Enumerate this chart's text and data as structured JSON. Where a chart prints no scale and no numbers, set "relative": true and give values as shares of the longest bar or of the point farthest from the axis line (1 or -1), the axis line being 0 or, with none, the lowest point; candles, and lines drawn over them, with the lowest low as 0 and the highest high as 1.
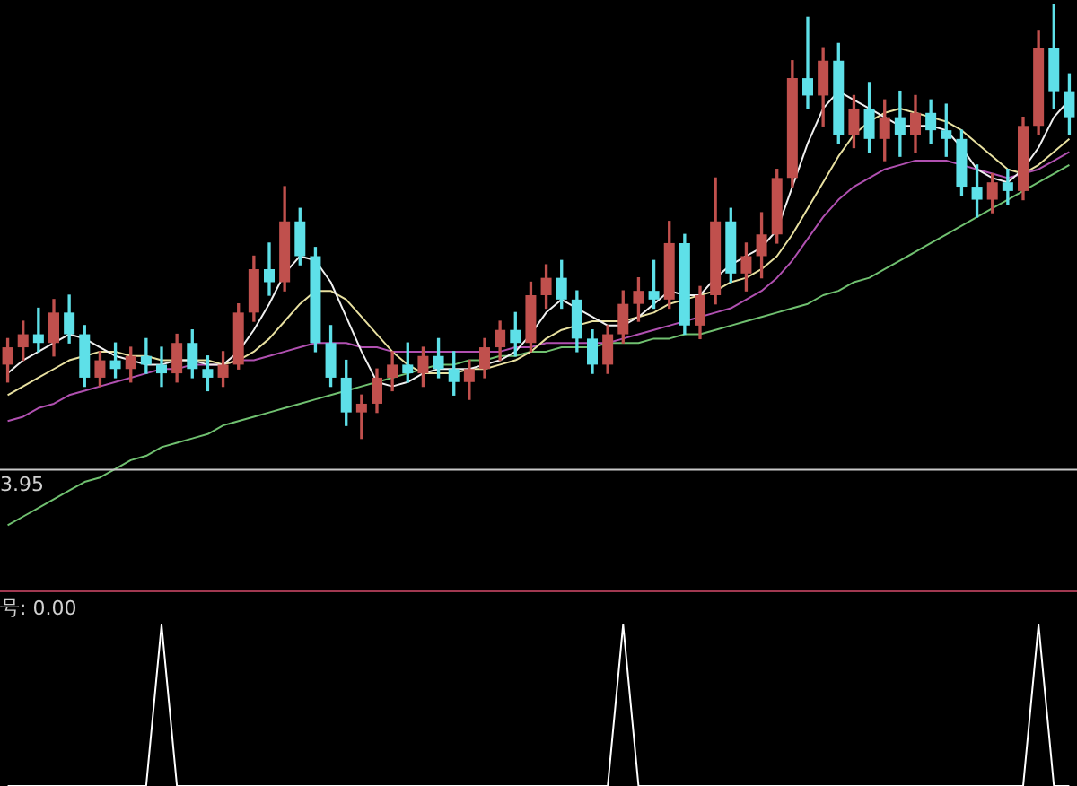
{
  "chart_data": [
    {
      "type": "candlestick",
      "relative": true,
      "categories": [
        null,
        null,
        null,
        null,
        null,
        null,
        null,
        null,
        null,
        null,
        null,
        null,
        null,
        null,
        null,
        null,
        null,
        null,
        null,
        null,
        null,
        null,
        null,
        null,
        null,
        null,
        null,
        null,
        null,
        null,
        null,
        null,
        null,
        null,
        null,
        null,
        null,
        null,
        null,
        null,
        null,
        null,
        null,
        null,
        null,
        null,
        null,
        null,
        null,
        null,
        null,
        null,
        null,
        null,
        null,
        null,
        null,
        null,
        null,
        null,
        null,
        null,
        null,
        null,
        null,
        null,
        null,
        null,
        null,
        null
      ],
      "ohlc": [
        [
          0.17,
          0.23,
          0.13,
          0.21
        ],
        [
          0.21,
          0.27,
          0.18,
          0.24
        ],
        [
          0.24,
          0.3,
          0.2,
          0.22
        ],
        [
          0.22,
          0.32,
          0.19,
          0.29
        ],
        [
          0.29,
          0.33,
          0.22,
          0.24
        ],
        [
          0.24,
          0.26,
          0.12,
          0.14
        ],
        [
          0.14,
          0.2,
          0.12,
          0.18
        ],
        [
          0.18,
          0.22,
          0.14,
          0.16
        ],
        [
          0.16,
          0.21,
          0.13,
          0.19
        ],
        [
          0.19,
          0.23,
          0.15,
          0.17
        ],
        [
          0.17,
          0.21,
          0.12,
          0.15
        ],
        [
          0.15,
          0.24,
          0.13,
          0.22
        ],
        [
          0.22,
          0.25,
          0.14,
          0.16
        ],
        [
          0.16,
          0.19,
          0.11,
          0.14
        ],
        [
          0.14,
          0.2,
          0.12,
          0.17
        ],
        [
          0.17,
          0.31,
          0.16,
          0.29
        ],
        [
          0.29,
          0.42,
          0.27,
          0.39
        ],
        [
          0.39,
          0.45,
          0.33,
          0.36
        ],
        [
          0.36,
          0.58,
          0.34,
          0.5
        ],
        [
          0.5,
          0.53,
          0.4,
          0.42
        ],
        [
          0.42,
          0.44,
          0.2,
          0.22
        ],
        [
          0.22,
          0.26,
          0.12,
          0.14
        ],
        [
          0.14,
          0.18,
          0.03,
          0.06
        ],
        [
          0.06,
          0.1,
          0,
          0.08
        ],
        [
          0.08,
          0.16,
          0.06,
          0.14
        ],
        [
          0.14,
          0.2,
          0.11,
          0.17
        ],
        [
          0.17,
          0.22,
          0.13,
          0.15
        ],
        [
          0.15,
          0.21,
          0.12,
          0.19
        ],
        [
          0.19,
          0.23,
          0.14,
          0.16
        ],
        [
          0.16,
          0.2,
          0.1,
          0.13
        ],
        [
          0.13,
          0.18,
          0.09,
          0.16
        ],
        [
          0.16,
          0.23,
          0.14,
          0.21
        ],
        [
          0.21,
          0.27,
          0.18,
          0.25
        ],
        [
          0.25,
          0.29,
          0.19,
          0.22
        ],
        [
          0.22,
          0.36,
          0.2,
          0.33
        ],
        [
          0.33,
          0.4,
          0.3,
          0.37
        ],
        [
          0.37,
          0.41,
          0.3,
          0.32
        ],
        [
          0.32,
          0.34,
          0.2,
          0.23
        ],
        [
          0.23,
          0.25,
          0.15,
          0.17
        ],
        [
          0.17,
          0.26,
          0.15,
          0.24
        ],
        [
          0.24,
          0.34,
          0.22,
          0.31
        ],
        [
          0.31,
          0.37,
          0.27,
          0.34
        ],
        [
          0.34,
          0.41,
          0.3,
          0.32
        ],
        [
          0.32,
          0.5,
          0.3,
          0.45
        ],
        [
          0.45,
          0.47,
          0.24,
          0.26
        ],
        [
          0.26,
          0.35,
          0.23,
          0.33
        ],
        [
          0.33,
          0.6,
          0.31,
          0.5
        ],
        [
          0.5,
          0.53,
          0.36,
          0.38
        ],
        [
          0.38,
          0.45,
          0.34,
          0.42
        ],
        [
          0.42,
          0.52,
          0.37,
          0.47
        ],
        [
          0.47,
          0.62,
          0.45,
          0.6
        ],
        [
          0.6,
          0.87,
          0.58,
          0.83
        ],
        [
          0.83,
          0.97,
          0.76,
          0.79
        ],
        [
          0.79,
          0.9,
          0.72,
          0.87
        ],
        [
          0.87,
          0.91,
          0.68,
          0.7
        ],
        [
          0.7,
          0.79,
          0.67,
          0.76
        ],
        [
          0.76,
          0.82,
          0.66,
          0.69
        ],
        [
          0.69,
          0.78,
          0.64,
          0.74
        ],
        [
          0.74,
          0.8,
          0.65,
          0.7
        ],
        [
          0.7,
          0.79,
          0.66,
          0.75
        ],
        [
          0.75,
          0.78,
          0.68,
          0.71
        ],
        [
          0.71,
          0.77,
          0.65,
          0.69
        ],
        [
          0.69,
          0.71,
          0.56,
          0.58
        ],
        [
          0.58,
          0.63,
          0.51,
          0.55
        ],
        [
          0.55,
          0.61,
          0.52,
          0.59
        ],
        [
          0.59,
          0.62,
          0.54,
          0.57
        ],
        [
          0.57,
          0.74,
          0.55,
          0.72
        ],
        [
          0.72,
          0.94,
          0.7,
          0.9
        ],
        [
          0.9,
          1,
          0.76,
          0.8
        ],
        [
          0.8,
          0.84,
          0.7,
          0.74
        ]
      ],
      "colors": [
        "#c0504d",
        "#c0504d",
        "#5ee0e8",
        "#c0504d",
        "#5ee0e8",
        "#5ee0e8",
        "#c0504d",
        "#5ee0e8",
        "#c0504d",
        "#5ee0e8",
        "#5ee0e8",
        "#c0504d",
        "#5ee0e8",
        "#5ee0e8",
        "#c0504d",
        "#c0504d",
        "#c0504d",
        "#5ee0e8",
        "#c0504d",
        "#5ee0e8",
        "#5ee0e8",
        "#5ee0e8",
        "#5ee0e8",
        "#c0504d",
        "#c0504d",
        "#c0504d",
        "#5ee0e8",
        "#c0504d",
        "#5ee0e8",
        "#5ee0e8",
        "#c0504d",
        "#c0504d",
        "#c0504d",
        "#5ee0e8",
        "#c0504d",
        "#c0504d",
        "#5ee0e8",
        "#5ee0e8",
        "#5ee0e8",
        "#c0504d",
        "#c0504d",
        "#c0504d",
        "#5ee0e8",
        "#c0504d",
        "#5ee0e8",
        "#c0504d",
        "#c0504d",
        "#5ee0e8",
        "#c0504d",
        "#c0504d",
        "#c0504d",
        "#c0504d",
        "#5ee0e8",
        "#c0504d",
        "#5ee0e8",
        "#c0504d",
        "#5ee0e8",
        "#c0504d",
        "#5ee0e8",
        "#c0504d",
        "#5ee0e8",
        "#5ee0e8",
        "#5ee0e8",
        "#5ee0e8",
        "#c0504d",
        "#5ee0e8",
        "#c0504d",
        "#c0504d",
        "#5ee0e8",
        "#5ee0e8"
      ],
      "series": [
        {
          "type": "line",
          "color": "#f0f0f0",
          "values": [
            0.15,
            0.18,
            0.2,
            0.22,
            0.24,
            0.23,
            0.21,
            0.19,
            0.18,
            0.17,
            0.17,
            0.18,
            0.18,
            0.17,
            0.17,
            0.2,
            0.25,
            0.31,
            0.38,
            0.42,
            0.41,
            0.36,
            0.28,
            0.2,
            0.13,
            0.12,
            0.13,
            0.15,
            0.16,
            0.16,
            0.16,
            0.17,
            0.18,
            0.2,
            0.24,
            0.29,
            0.32,
            0.3,
            0.28,
            0.26,
            0.26,
            0.28,
            0.31,
            0.34,
            0.33,
            0.33,
            0.37,
            0.4,
            0.42,
            0.44,
            0.48,
            0.58,
            0.68,
            0.76,
            0.8,
            0.78,
            0.76,
            0.74,
            0.72,
            0.72,
            0.72,
            0.71,
            0.67,
            0.62,
            0.6,
            0.59,
            0.62,
            0.67,
            0.74,
            0.78
          ]
        },
        {
          "type": "line",
          "color": "#e8e0a0",
          "values": [
            0.1,
            0.12,
            0.14,
            0.16,
            0.18,
            0.19,
            0.2,
            0.2,
            0.19,
            0.19,
            0.18,
            0.18,
            0.18,
            0.18,
            0.17,
            0.18,
            0.2,
            0.23,
            0.27,
            0.31,
            0.34,
            0.34,
            0.32,
            0.28,
            0.24,
            0.2,
            0.17,
            0.15,
            0.15,
            0.15,
            0.16,
            0.16,
            0.17,
            0.18,
            0.2,
            0.23,
            0.25,
            0.26,
            0.27,
            0.27,
            0.27,
            0.28,
            0.29,
            0.31,
            0.32,
            0.33,
            0.34,
            0.36,
            0.37,
            0.39,
            0.42,
            0.47,
            0.53,
            0.59,
            0.65,
            0.7,
            0.73,
            0.75,
            0.76,
            0.75,
            0.74,
            0.73,
            0.71,
            0.68,
            0.65,
            0.62,
            0.61,
            0.63,
            0.66,
            0.69
          ]
        },
        {
          "type": "line",
          "color": "#b050b0",
          "values": [
            0.04,
            0.05,
            0.07,
            0.08,
            0.1,
            0.11,
            0.12,
            0.13,
            0.14,
            0.15,
            0.16,
            0.16,
            0.17,
            0.17,
            0.17,
            0.18,
            0.18,
            0.19,
            0.2,
            0.21,
            0.22,
            0.22,
            0.22,
            0.21,
            0.21,
            0.2,
            0.2,
            0.2,
            0.2,
            0.2,
            0.2,
            0.2,
            0.2,
            0.21,
            0.21,
            0.22,
            0.22,
            0.22,
            0.22,
            0.22,
            0.23,
            0.24,
            0.25,
            0.26,
            0.27,
            0.28,
            0.29,
            0.3,
            0.32,
            0.34,
            0.37,
            0.41,
            0.46,
            0.51,
            0.55,
            0.58,
            0.6,
            0.62,
            0.63,
            0.64,
            0.64,
            0.64,
            0.63,
            0.62,
            0.61,
            0.6,
            0.61,
            0.62,
            0.64,
            0.66
          ]
        },
        {
          "type": "line",
          "color": "#70c070",
          "values": [
            -0.2,
            -0.18,
            -0.16,
            -0.14,
            -0.12,
            -0.1,
            -0.09,
            -0.07,
            -0.05,
            -0.04,
            -0.02,
            -0.01,
            0,
            0.01,
            0.03,
            0.04,
            0.05,
            0.06,
            0.07,
            0.08,
            0.09,
            0.1,
            0.11,
            0.12,
            0.13,
            0.14,
            0.15,
            0.16,
            0.17,
            0.17,
            0.18,
            0.18,
            0.19,
            0.19,
            0.2,
            0.2,
            0.21,
            0.21,
            0.21,
            0.22,
            0.22,
            0.22,
            0.23,
            0.23,
            0.24,
            0.24,
            0.25,
            0.26,
            0.27,
            0.28,
            0.29,
            0.3,
            0.31,
            0.33,
            0.34,
            0.36,
            0.37,
            0.39,
            0.41,
            0.43,
            0.45,
            0.47,
            0.49,
            0.51,
            0.53,
            0.55,
            0.57,
            0.59,
            0.61,
            0.63
          ]
        }
      ],
      "ref_lines": [
        {
          "axis": "y",
          "value": -0.07,
          "color": "#c8c8c8"
        }
      ],
      "annotations": [
        "3.95"
      ]
    },
    {
      "type": "line",
      "relative": true,
      "categories": [
        null,
        null,
        null,
        null,
        null,
        null,
        null,
        null,
        null,
        null,
        null,
        null,
        null,
        null,
        null,
        null,
        null,
        null,
        null,
        null,
        null,
        null,
        null,
        null,
        null,
        null,
        null,
        null,
        null,
        null,
        null,
        null,
        null,
        null,
        null,
        null,
        null,
        null,
        null,
        null,
        null,
        null,
        null,
        null,
        null,
        null,
        null,
        null,
        null,
        null,
        null,
        null,
        null,
        null,
        null,
        null,
        null,
        null,
        null,
        null,
        null,
        null,
        null,
        null,
        null,
        null,
        null,
        null,
        null,
        null
      ],
      "series": [
        {
          "color": "#ffffff",
          "values": [
            0,
            0,
            0,
            0,
            0,
            0,
            0,
            0,
            0,
            0,
            1,
            0,
            0,
            0,
            0,
            0,
            0,
            0,
            0,
            0,
            0,
            0,
            0,
            0,
            0,
            0,
            0,
            0,
            0,
            0,
            0,
            0,
            0,
            0,
            0,
            0,
            0,
            0,
            0,
            0,
            1,
            0,
            0,
            0,
            0,
            0,
            0,
            0,
            0,
            0,
            0,
            0,
            0,
            0,
            0,
            0,
            0,
            0,
            0,
            0,
            0,
            0,
            0,
            0,
            0,
            0,
            0,
            1,
            0,
            0
          ]
        }
      ],
      "annotations": [
        "号: 0.00"
      ]
    }
  ]
}
